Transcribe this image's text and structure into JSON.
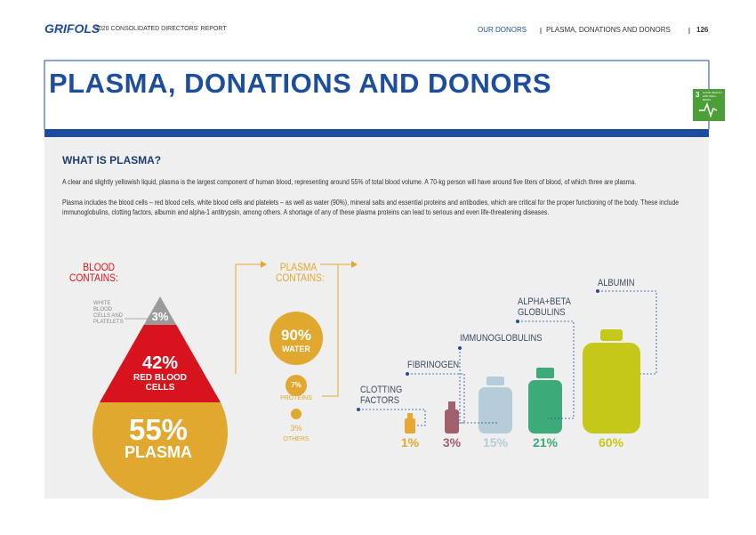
{
  "header": {
    "logo": "GRIFOLS",
    "report": "2020 CONSOLIDATED DIRECTORS' REPORT",
    "section": "OUR DONORS",
    "chapter": "PLASMA, DONATIONS AND DONORS",
    "page": "126"
  },
  "title": "PLASMA, DONATIONS AND DONORS",
  "sdg": {
    "number": "3",
    "label": "GOOD HEALTH AND WELL-BEING"
  },
  "section": {
    "heading": "WHAT IS PLASMA?",
    "paragraphs": [
      "A clear and slightly yellowish liquid, plasma is the largest component of human blood, representing around 55% of total blood volume. A 70-kg person will have around five liters of blood, of which three are plasma.",
      "Plasma includes the blood cells – red blood cells, white blood cells and platelets – as well as water (90%), mineral salts and essential proteins and antibodies, which are critical for the proper functioning of the body. These include immunoglobulins, clotting factors, albumin and alpha-1 antitrypsin, among others. A shortage of any of these plasma proteins can lead to serious and even life-threatening diseases."
    ]
  },
  "infographic": {
    "blood_heading": "BLOOD CONTAINS:",
    "blood": [
      {
        "value": "3%",
        "label": "WHITE BLOOD CELLS AND PLATELETS"
      },
      {
        "value": "42%",
        "label": "RED BLOOD CELLS"
      },
      {
        "value": "55%",
        "label": "PLASMA"
      }
    ],
    "plasma_heading": "PLASMA CONTAINS:",
    "plasma": [
      {
        "value": "90%",
        "label": "WATER"
      },
      {
        "value": "7%",
        "label": "PROTEINS"
      },
      {
        "value": "3%",
        "label": "OTHERS"
      }
    ],
    "proteins": [
      {
        "label": "CLOTTING FACTORS",
        "value": "1%"
      },
      {
        "label": "FIBRINOGEN",
        "value": "3%"
      },
      {
        "label": "IMMUNOGLOBULINS",
        "value": "15%"
      },
      {
        "label": "ALPHA+BETA GLOBULINS",
        "value": "21%"
      },
      {
        "label": "ALBUMIN",
        "value": "60%"
      }
    ]
  }
}
